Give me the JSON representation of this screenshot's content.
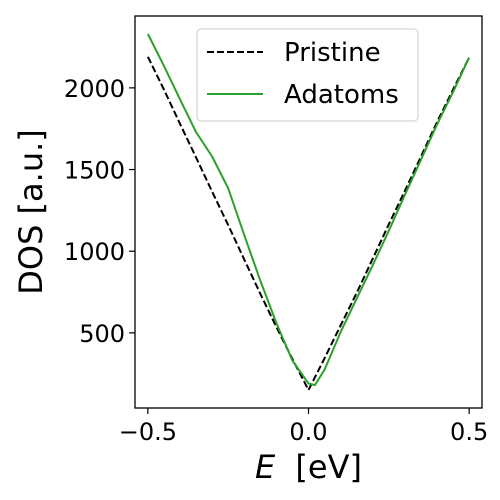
{
  "chart_data": {
    "type": "line",
    "xlabel_symbol": "E",
    "xlabel_unit": "[eV]",
    "ylabel": "DOS [a.u.]",
    "xlim": [
      -0.54,
      0.54
    ],
    "ylim": [
      40,
      2440
    ],
    "xticks": [
      -0.5,
      0.0,
      0.5
    ],
    "xtick_labels": [
      "−0.5",
      "0.0",
      "0.5"
    ],
    "yticks": [
      500,
      1000,
      1500,
      2000
    ],
    "ytick_labels": [
      "500",
      "1000",
      "1500",
      "2000"
    ],
    "legend_position": "top-center",
    "series": [
      {
        "name": "Pristine",
        "style": "dashed",
        "color": "#000000",
        "x": [
          -0.5,
          -0.45,
          -0.4,
          -0.35,
          -0.3,
          -0.25,
          -0.2,
          -0.15,
          -0.1,
          -0.05,
          0.0,
          0.05,
          0.1,
          0.15,
          0.2,
          0.25,
          0.3,
          0.35,
          0.4,
          0.45,
          0.5
        ],
        "y": [
          2190,
          1990,
          1780,
          1575,
          1365,
          1160,
          950,
          740,
          535,
          340,
          150,
          345,
          545,
          745,
          955,
          1165,
          1370,
          1580,
          1790,
          1990,
          2185
        ]
      },
      {
        "name": "Adatoms",
        "style": "solid",
        "color": "#2ca02c",
        "x": [
          -0.5,
          -0.45,
          -0.4,
          -0.35,
          -0.3,
          -0.25,
          -0.2,
          -0.15,
          -0.1,
          -0.05,
          0.0,
          0.02,
          0.05,
          0.1,
          0.15,
          0.2,
          0.25,
          0.3,
          0.35,
          0.4,
          0.45,
          0.5
        ],
        "y": [
          2330,
          2135,
          1930,
          1730,
          1580,
          1385,
          1100,
          820,
          560,
          330,
          190,
          180,
          275,
          505,
          710,
          915,
          1125,
          1345,
          1560,
          1775,
          1975,
          2185
        ]
      }
    ]
  }
}
